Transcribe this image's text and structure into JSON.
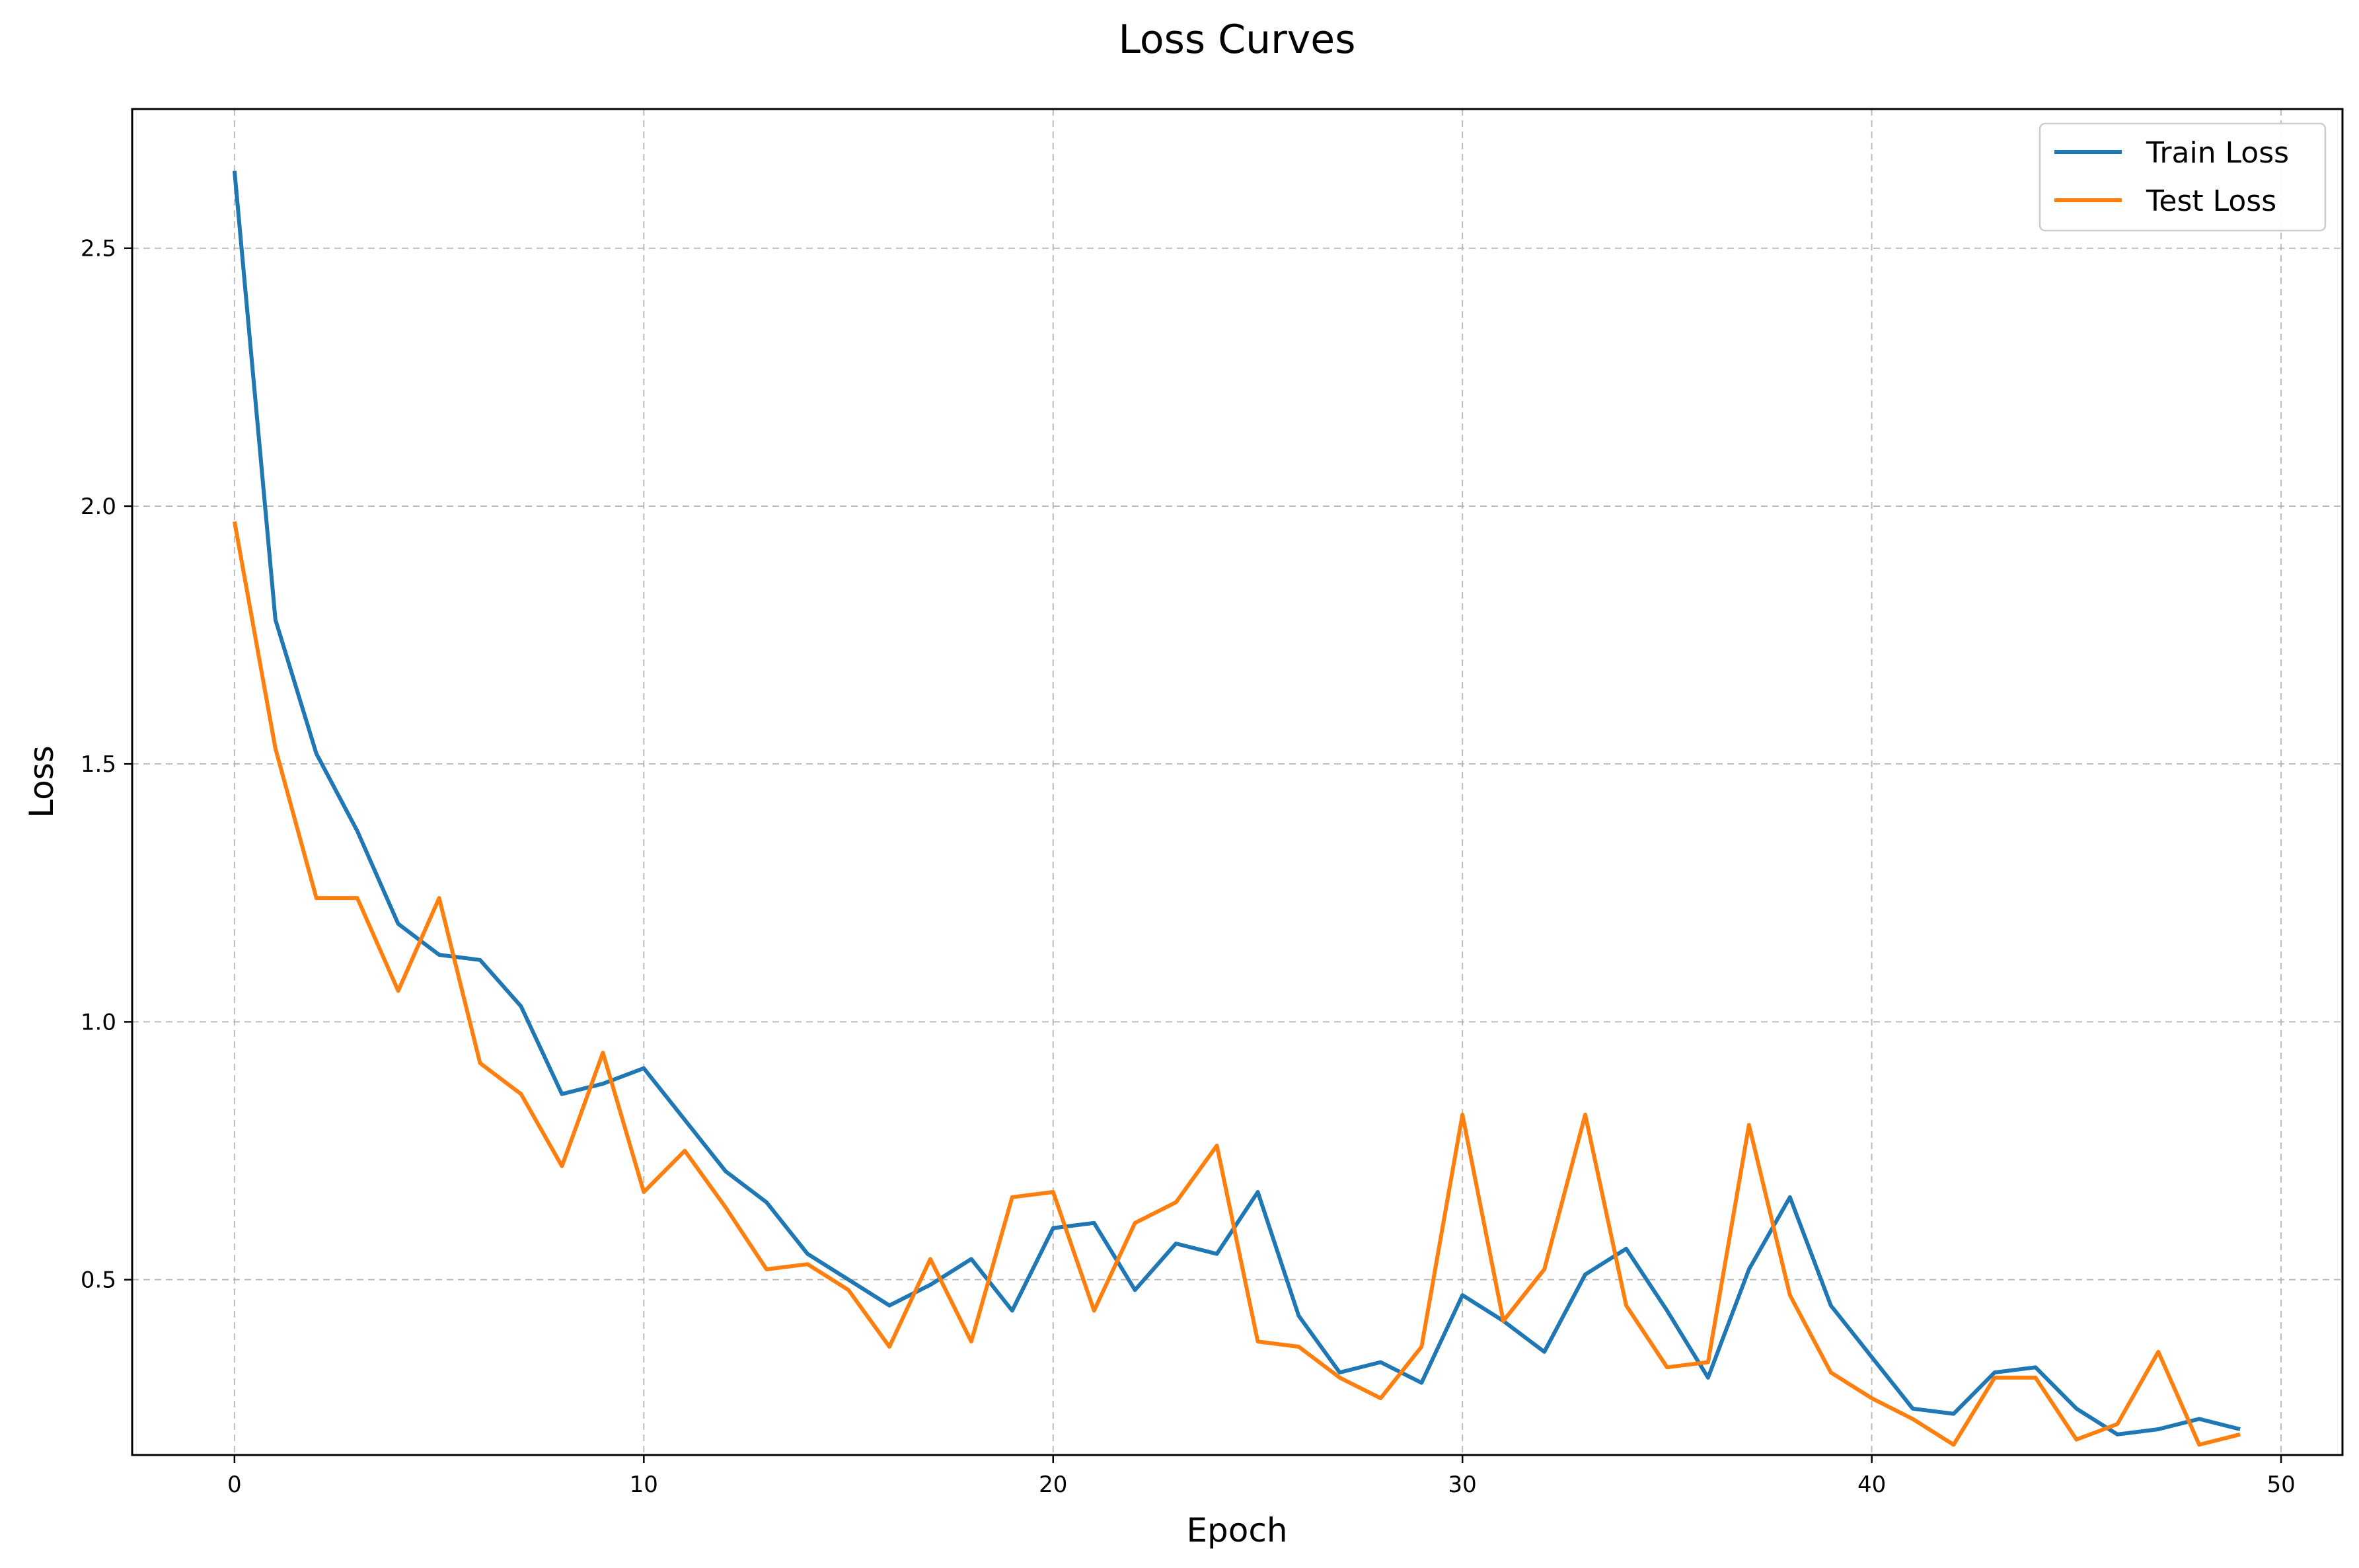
{
  "chart_data": {
    "type": "line",
    "title": "Loss Curves",
    "xlabel": "Epoch",
    "ylabel": "Loss",
    "xlim": [
      -2.5,
      51.5
    ],
    "ylim": [
      0.16,
      2.77
    ],
    "xticks": [
      0,
      10,
      20,
      30,
      40,
      50
    ],
    "yticks": [
      0.5,
      1.0,
      1.5,
      2.0,
      2.5
    ],
    "xtick_labels": [
      "0",
      "10",
      "20",
      "30",
      "40",
      "50"
    ],
    "ytick_labels": [
      "0.5",
      "1.0",
      "1.5",
      "2.0",
      "2.5"
    ],
    "grid": true,
    "grid_style": "dashed",
    "legend_position": "top-right",
    "x": [
      0,
      1,
      2,
      3,
      4,
      5,
      6,
      7,
      8,
      9,
      10,
      11,
      12,
      13,
      14,
      15,
      16,
      17,
      18,
      19,
      20,
      21,
      22,
      23,
      24,
      25,
      26,
      27,
      28,
      29,
      30,
      31,
      32,
      33,
      34,
      35,
      36,
      37,
      38,
      39,
      40,
      41,
      42,
      43,
      44,
      45,
      46,
      47,
      48,
      49
    ],
    "series": [
      {
        "name": "Train Loss",
        "color": "#1f77b4",
        "values": [
          2.65,
          1.78,
          1.52,
          1.37,
          1.19,
          1.13,
          1.12,
          1.03,
          0.86,
          0.88,
          0.91,
          0.81,
          0.71,
          0.65,
          0.55,
          0.5,
          0.45,
          0.49,
          0.54,
          0.44,
          0.6,
          0.61,
          0.48,
          0.57,
          0.55,
          0.67,
          0.43,
          0.32,
          0.34,
          0.3,
          0.47,
          0.42,
          0.36,
          0.51,
          0.56,
          0.44,
          0.31,
          0.52,
          0.66,
          0.45,
          0.35,
          0.25,
          0.24,
          0.32,
          0.33,
          0.25,
          0.2,
          0.21,
          0.23,
          0.21
        ]
      },
      {
        "name": "Test Loss",
        "color": "#ff7f0e",
        "values": [
          1.97,
          1.53,
          1.24,
          1.24,
          1.06,
          1.24,
          0.92,
          0.86,
          0.72,
          0.94,
          0.67,
          0.75,
          0.64,
          0.52,
          0.53,
          0.48,
          0.37,
          0.54,
          0.38,
          0.66,
          0.67,
          0.44,
          0.61,
          0.65,
          0.76,
          0.38,
          0.37,
          0.31,
          0.27,
          0.37,
          0.82,
          0.42,
          0.52,
          0.82,
          0.45,
          0.33,
          0.34,
          0.8,
          0.47,
          0.32,
          0.27,
          0.23,
          0.18,
          0.31,
          0.31,
          0.19,
          0.22,
          0.36,
          0.18,
          0.2
        ]
      }
    ]
  }
}
